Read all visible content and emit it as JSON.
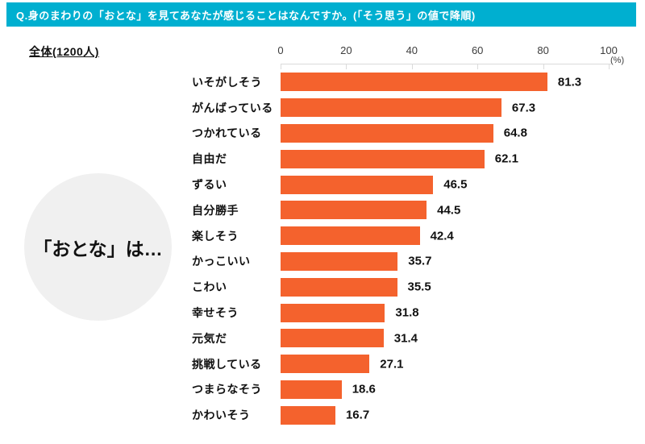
{
  "header": {
    "title": "Q.身のまわりの「おとな」を見てあなたが感じることはなんですか。(「そう思う」の値で降順)"
  },
  "subtitle": "全体(1200人)",
  "circle_label": "「おとな」は…",
  "colors": {
    "header_bg": "#00AFD0",
    "bar": "#F4622D",
    "circle_bg": "#F0F0F0",
    "axis": "#DBDBDB"
  },
  "chart_data": {
    "type": "bar",
    "orientation": "horizontal",
    "title": "Q.身のまわりの「おとな」を見てあなたが感じることはなんですか。(「そう思う」の値で降順)",
    "group_label": "全体(1200人)",
    "unit": "%",
    "axis_unit_label": "(%)",
    "xlim": [
      0,
      100
    ],
    "x_ticks": [
      0,
      20,
      40,
      60,
      80,
      100
    ],
    "grid": false,
    "sort": "descending",
    "categories": [
      "いそがしそう",
      "がんばっている",
      "つかれている",
      "自由だ",
      "ずるい",
      "自分勝手",
      "楽しそう",
      "かっこいい",
      "こわい",
      "幸せそう",
      "元気だ",
      "挑戦している",
      "つまらなそう",
      "かわいそう"
    ],
    "values": [
      81.3,
      67.3,
      64.8,
      62.1,
      46.5,
      44.5,
      42.4,
      35.7,
      35.5,
      31.8,
      31.4,
      27.1,
      18.6,
      16.7
    ]
  }
}
